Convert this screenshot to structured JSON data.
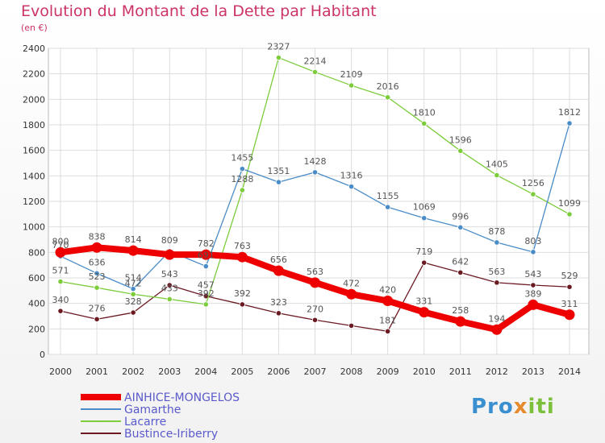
{
  "header": {
    "title": "Evolution du Montant de la Dette par Habitant",
    "unit": "(en €)"
  },
  "logo": {
    "p1": "Pro",
    "p2": "x",
    "p3": "iti"
  },
  "chart_data": {
    "type": "line",
    "title": "Evolution du Montant de la Dette par Habitant",
    "ylabel": "(en €)",
    "ylim": [
      0,
      2400
    ],
    "ytick_step": 200,
    "grid": true,
    "legend_position": "bottom-left",
    "x": [
      "2000",
      "2001",
      "2002",
      "2003",
      "2004",
      "2005",
      "2006",
      "2007",
      "2008",
      "2009",
      "2010",
      "2011",
      "2012",
      "2013",
      "2014"
    ],
    "series": [
      {
        "name": "AINHICE-MONGELOS",
        "color": "#ee0000",
        "values": [
          800,
          838,
          814,
          782,
          782,
          763,
          656,
          563,
          472,
          420,
          331,
          258,
          194,
          389,
          311
        ],
        "labels": [
          "800",
          "838",
          "814",
          "",
          "782",
          "763",
          "656",
          "563",
          "472",
          "420",
          "331",
          "258",
          "194",
          "389",
          "311"
        ]
      },
      {
        "name": "Gamarthe",
        "color": "#4a8cc8",
        "values": [
          770,
          636,
          514,
          809,
          691,
          1455,
          1351,
          1428,
          1316,
          1155,
          1069,
          996,
          878,
          803,
          1812
        ],
        "labels": [
          "770",
          "636",
          "514",
          "809",
          "691",
          "1455",
          "1351",
          "1428",
          "1316",
          "1155",
          "1069",
          "996",
          "878",
          "803",
          "1812"
        ]
      },
      {
        "name": "Lacarre",
        "color": "#7ccc3c",
        "values": [
          571,
          523,
          472,
          433,
          392,
          1288,
          2327,
          2214,
          2109,
          2016,
          1810,
          1596,
          1405,
          1256,
          1099
        ],
        "labels": [
          "571",
          "523",
          "472",
          "433",
          "392",
          "1288",
          "2327",
          "2214",
          "2109",
          "2016",
          "1810",
          "1596",
          "1405",
          "1256",
          "1099"
        ]
      },
      {
        "name": "Bustince-Iriberry",
        "color": "#6b1a22",
        "values": [
          340,
          276,
          328,
          543,
          457,
          392,
          323,
          270,
          225,
          181,
          719,
          642,
          563,
          543,
          529
        ],
        "labels": [
          "340",
          "276",
          "328",
          "543",
          "457",
          "392",
          "323",
          "270",
          "",
          "181",
          "719",
          "642",
          "563",
          "543",
          "529"
        ]
      }
    ]
  }
}
